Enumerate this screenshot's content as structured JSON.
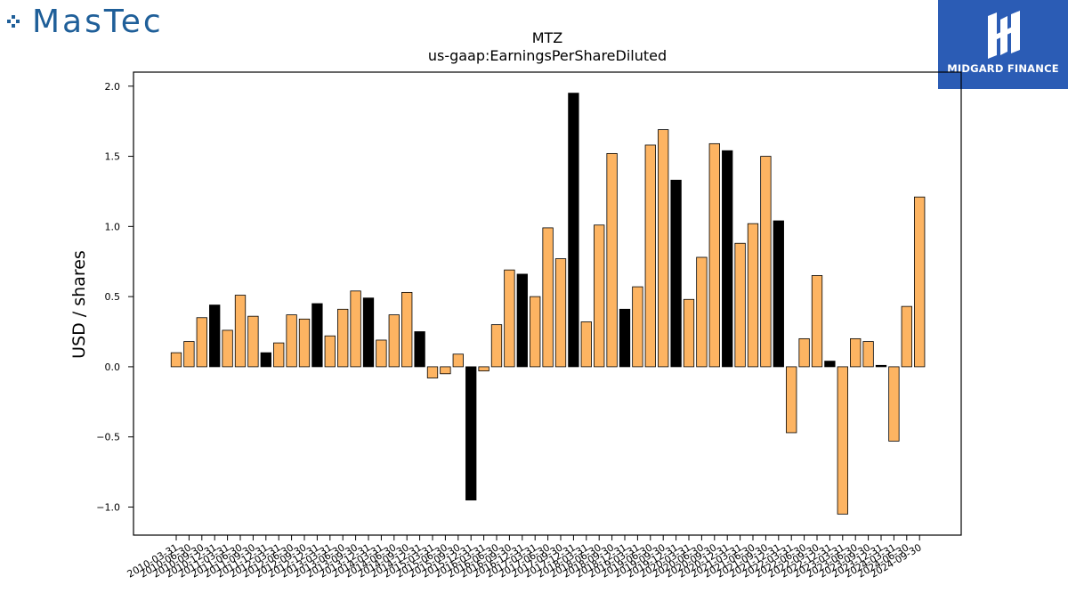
{
  "branding": {
    "left_logo_text": "MasTec",
    "right_logo_text": "MIDGARD FINANCE",
    "left_logo_color": "#1f5f99",
    "right_logo_bg": "#2b5cb5"
  },
  "chart_data": {
    "type": "bar",
    "title": "MTZ",
    "subtitle": "us-gaap:EarningsPerShareDiluted",
    "xlabel": "",
    "ylabel": "USD / shares",
    "ylim": [
      -1.2,
      2.1
    ],
    "yticks": [
      -1.0,
      -0.5,
      0.0,
      0.5,
      1.0,
      1.5,
      2.0
    ],
    "ytick_labels": [
      "−1.0",
      "−0.5",
      "0.0",
      "0.5",
      "1.0",
      "1.5",
      "2.0"
    ],
    "grid": false,
    "colors": {
      "quarterly": "#fdb462",
      "annual": "#000000",
      "edge": "#000000"
    },
    "categories": [
      "2010-03-31",
      "2010-06-30",
      "2010-09-30",
      "2010-12-31",
      "2011-03-31",
      "2011-06-30",
      "2011-09-30",
      "2011-12-31",
      "2012-03-31",
      "2012-06-30",
      "2012-09-30",
      "2012-12-31",
      "2013-03-31",
      "2013-06-30",
      "2013-09-30",
      "2013-12-31",
      "2014-03-31",
      "2014-06-30",
      "2014-09-30",
      "2014-12-31",
      "2015-03-31",
      "2015-06-30",
      "2015-09-30",
      "2015-12-31",
      "2016-03-31",
      "2016-06-30",
      "2016-09-30",
      "2016-12-31",
      "2017-03-31",
      "2017-06-30",
      "2017-09-30",
      "2017-12-31",
      "2018-03-31",
      "2018-06-30",
      "2018-09-30",
      "2018-12-31",
      "2019-03-31",
      "2019-06-30",
      "2019-09-30",
      "2019-12-31",
      "2020-03-31",
      "2020-06-30",
      "2020-09-30",
      "2020-12-31",
      "2021-03-31",
      "2021-06-30",
      "2021-09-30",
      "2021-12-31",
      "2022-03-31",
      "2022-06-30",
      "2022-09-30",
      "2022-12-31",
      "2023-03-31",
      "2023-06-30",
      "2023-09-30",
      "2023-12-31",
      "2024-03-31",
      "2024-06-30",
      "2024-09-30"
    ],
    "values": [
      0.1,
      0.18,
      0.35,
      0.44,
      0.26,
      0.51,
      0.36,
      0.1,
      0.17,
      0.37,
      0.34,
      0.45,
      0.22,
      0.41,
      0.54,
      0.49,
      0.19,
      0.37,
      0.53,
      0.25,
      -0.08,
      -0.05,
      0.09,
      -0.95,
      -0.03,
      0.3,
      0.69,
      0.66,
      0.5,
      0.99,
      0.77,
      1.95,
      0.32,
      1.01,
      1.52,
      0.41,
      0.57,
      1.58,
      1.69,
      1.33,
      0.48,
      0.78,
      1.59,
      1.54,
      0.88,
      1.02,
      1.5,
      1.04,
      -0.47,
      0.2,
      0.65,
      0.04,
      -1.05,
      0.2,
      0.18,
      0.01,
      -0.53,
      0.43,
      1.21
    ],
    "bar_type": [
      "q",
      "q",
      "q",
      "a",
      "q",
      "q",
      "q",
      "a",
      "q",
      "q",
      "q",
      "a",
      "q",
      "q",
      "q",
      "a",
      "q",
      "q",
      "q",
      "a",
      "q",
      "q",
      "q",
      "a",
      "q",
      "q",
      "q",
      "a",
      "q",
      "q",
      "q",
      "a",
      "q",
      "q",
      "q",
      "a",
      "q",
      "q",
      "q",
      "a",
      "q",
      "q",
      "q",
      "a",
      "q",
      "q",
      "q",
      "a",
      "q",
      "q",
      "q",
      "a",
      "q",
      "q",
      "q",
      "a",
      "q",
      "q",
      "q"
    ]
  }
}
